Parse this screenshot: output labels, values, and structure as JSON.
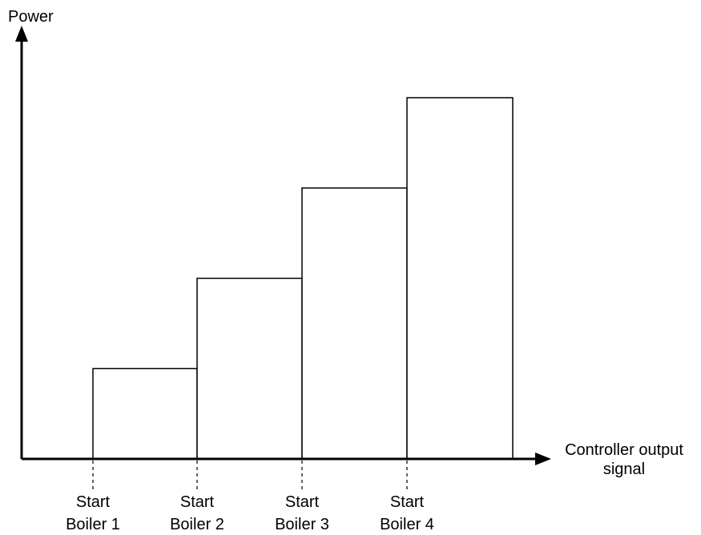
{
  "chart_data": {
    "type": "bar",
    "ylabel": "Power",
    "xlabel": [
      "Controller output",
      "signal"
    ],
    "categories": [
      "Start Boiler 1",
      "Start Boiler 2",
      "Start Boiler 3",
      "Start Boiler 4"
    ],
    "tick_labels": [
      [
        "Start",
        "Boiler 1"
      ],
      [
        "Start",
        "Boiler 2"
      ],
      [
        "Start",
        "Boiler 3"
      ],
      [
        "Start",
        "Boiler 4"
      ]
    ],
    "values": [
      1,
      2,
      3,
      4
    ],
    "ylim": [
      0,
      4
    ],
    "y_ticks_shown": false,
    "grid": false,
    "legend": "none",
    "bar_fill": "#ffffff",
    "line_color": "#000000"
  }
}
